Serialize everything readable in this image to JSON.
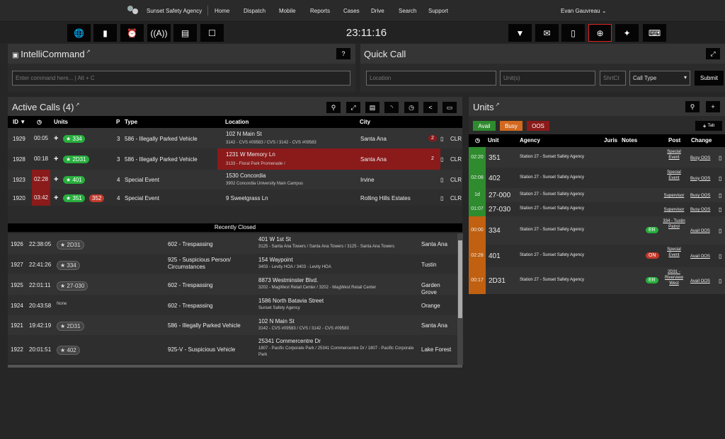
{
  "nav": {
    "agency": "Sunset Safety Agency",
    "items": [
      "Home",
      "Dispatch",
      "Mobile",
      "Reports",
      "Cases",
      "Drive",
      "Search",
      "Support"
    ],
    "user": "Evan Gauvreau ⌄"
  },
  "clock": "23:11:16",
  "intelli": {
    "title": "IntelliCommand",
    "help": "?",
    "placeholder": "Enter command here... | Alt + C"
  },
  "quick": {
    "title": "Quick Call",
    "location": "Location",
    "units": "Unit(s)",
    "shrtct": "ShrtCt",
    "calltype": "Call Type",
    "submit": "Submit"
  },
  "active": {
    "title": "Active Calls",
    "count": "(4)",
    "headers": [
      "ID ▼",
      "Units",
      "P",
      "Type",
      "Location",
      "City"
    ],
    "rows": [
      {
        "id": "1929",
        "time": "00:05",
        "units": [
          "★ 334"
        ],
        "p": "3",
        "type": "586 - Illegally Parked Vehicle",
        "loc": "102 N Main St",
        "sub": "3142 - CVS #09583 / CVS / 3142 - CVS #09583",
        "city": "Santa Ana",
        "count": "2",
        "clr": "CLR"
      },
      {
        "id": "1928",
        "time": "00:18",
        "units": [
          "★ 2D31"
        ],
        "p": "3",
        "type": "586 - Illegally Parked Vehicle",
        "loc": "1231 W Memory Ln",
        "sub": "3133 - Floral Park Promenade /",
        "city": "Santa Ana",
        "count": "2",
        "clr": "CLR"
      },
      {
        "id": "1923",
        "time": "02:28",
        "units": [
          "★ 401"
        ],
        "p": "4",
        "type": "Special Event",
        "loc": "1530 Concordia",
        "sub": "3902 Concordia University Main Campus",
        "city": "Irvine",
        "count": "",
        "clr": "CLR"
      },
      {
        "id": "1920",
        "time": "03:42",
        "units": [
          "★ 351",
          "352"
        ],
        "p": "4",
        "type": "Special Event",
        "loc": "9 Sweetgrass Ln",
        "sub": "",
        "city": "Rolling Hills Estates",
        "count": "",
        "clr": "CLR"
      }
    ]
  },
  "closed": {
    "title": "Recently Closed",
    "rows": [
      {
        "id": "1926",
        "time": "22:38:05",
        "unit": "★ 2D31",
        "type": "602 - Trespassing",
        "loc": "401 W 1st St",
        "sub": "3125 - Santa Ana Towers / Santa Ana Towers / 3125 - Santa Ana Towers",
        "city": "Santa Ana"
      },
      {
        "id": "1927",
        "time": "22:41:26",
        "unit": "★ 334",
        "type": "925 - Suspicious Person/ Circumstances",
        "loc": "154 Waypoint",
        "sub": "3403 - Levity HOA / 3403 - Levity HOA",
        "city": "Tustin"
      },
      {
        "id": "1925",
        "time": "22:01:11",
        "unit": "★ 27-030",
        "type": "602 - Trespassing",
        "loc": "8873 Westminster Blvd.",
        "sub": "3202 - MagWest Retail Center / 3202 - MagWest Retail Center",
        "city": "Garden Grove"
      },
      {
        "id": "1924",
        "time": "20:43:58",
        "unit": "None",
        "type": "602 - Trespassing",
        "loc": "1586 North Batavia Street",
        "sub": "Sunset Safety Agency",
        "city": "Orange"
      },
      {
        "id": "1921",
        "time": "19:42:19",
        "unit": "★ 2D31",
        "type": "586 - Illegally Parked Vehicle",
        "loc": "102 N Main St",
        "sub": "3142 - CVS #09583 / CVS / 3142 - CVS #09583",
        "city": "Santa Ana"
      },
      {
        "id": "1922",
        "time": "20:01:51",
        "unit": "★ 402",
        "type": "925-V - Suspicious Vehicle",
        "loc": "25341 Commercentre Dr",
        "sub": "1807 - Pacific Corporate Park / 25341 Commercentre Dr / 1807 - Pacific Corporate Park",
        "city": "Lake Forest"
      }
    ]
  },
  "units": {
    "title": "Units",
    "avail": "Avail",
    "busy": "Busy",
    "oos": "OOS",
    "tab": "Tab",
    "headers": [
      "Unit",
      "Agency",
      "Juris",
      "Notes",
      "Post",
      "Change"
    ],
    "rows": [
      {
        "t": "02:20",
        "unit": "351",
        "agency": "Station 27 - Sunset Safety Agency",
        "post": "Special Event",
        "change": "Busy OOS",
        "color": "#2e8b2e"
      },
      {
        "t": "02:08",
        "unit": "402",
        "agency": "Station 27 - Sunset Safety Agency",
        "post": "Special Event",
        "change": "Busy OOS",
        "color": "#2e8b2e"
      },
      {
        "t": "1d",
        "unit": "27-000",
        "agency": "Station 27 - Sunset Safety Agency",
        "post": "Supervisor",
        "change": "Busy OOS",
        "color": "#2e8b2e"
      },
      {
        "t": "01:07",
        "unit": "27-030",
        "agency": "Station 27 - Sunset Safety Agency",
        "post": "Supervisor",
        "change": "Busy OOS",
        "color": "#2e8b2e"
      },
      {
        "t": "00:00",
        "unit": "334",
        "agency": "Station 27 - Sunset Safety Agency",
        "note": "ER",
        "post": "334 - Tustin Patrol",
        "change": "Avail OOS",
        "color": "#c06010"
      },
      {
        "t": "02:28",
        "unit": "401",
        "agency": "Station 27 - Sunset Safety Agency",
        "note": "ON",
        "post": "Special Event",
        "change": "Avail OOS",
        "color": "#c06010"
      },
      {
        "t": "00:17",
        "unit": "2D31",
        "agency": "Station 27 - Sunset Safety Agency",
        "note": "ER",
        "post": "2D31 - Riverview West",
        "change": "Avail OOS",
        "color": "#c06010"
      }
    ]
  }
}
